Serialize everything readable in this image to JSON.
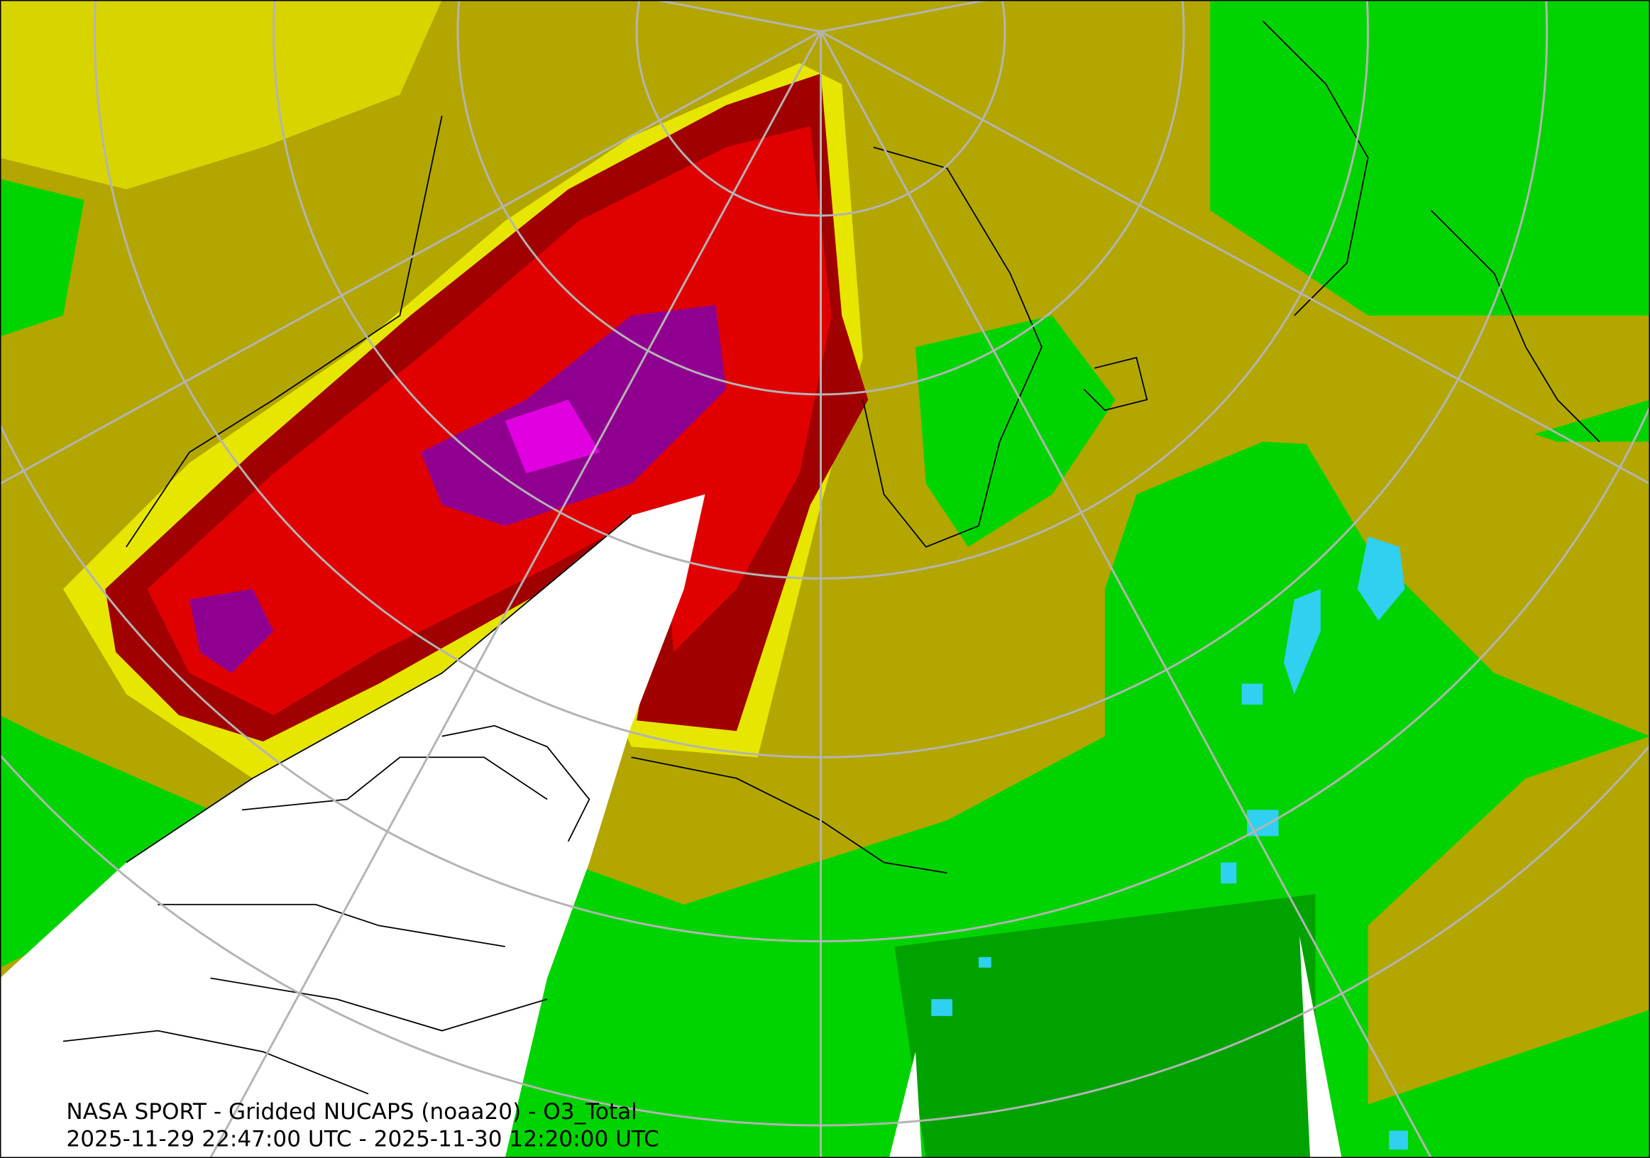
{
  "caption": {
    "line1": "NASA SPORT - Gridded NUCAPS (noaa20) - O3_Total",
    "line2": "2025-11-29 22:47:00 UTC - 2025-11-30 12:20:00 UTC"
  }
}
